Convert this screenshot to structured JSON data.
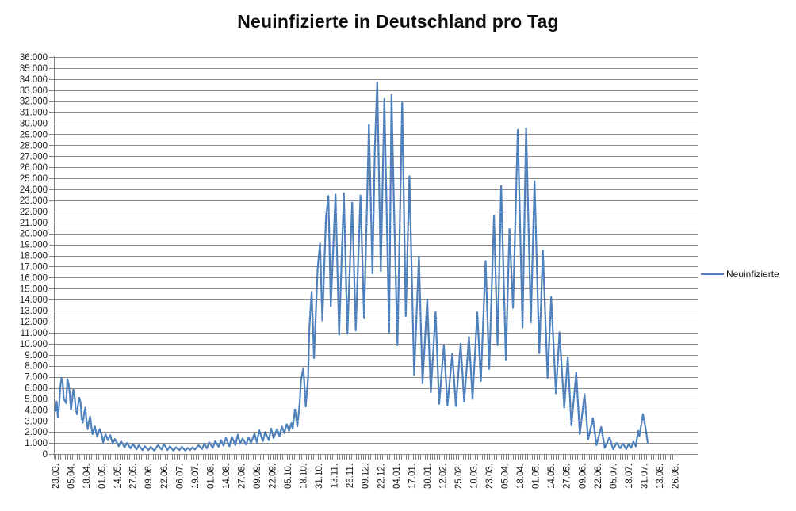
{
  "title": "Neuinfizierte in Deutschland pro Tag",
  "colors": {
    "series": "#4F81BD",
    "grid": "#8C8C8C",
    "axis": "#7F7F7F",
    "text": "#1a1a1a"
  },
  "legend": {
    "position": "right",
    "entries": [
      "Neuinfizierte"
    ]
  },
  "chart_data": {
    "type": "line",
    "title": "Neuinfizierte in Deutschland pro Tag",
    "xlabel": "",
    "ylabel": "",
    "grid": true,
    "y_axis": {
      "min": 0,
      "max": 36000,
      "step": 1000,
      "tick_labels": [
        "36.000",
        "35.000",
        "34.000",
        "33.000",
        "32.000",
        "31.000",
        "30.000",
        "29.000",
        "28.000",
        "27.000",
        "26.000",
        "25.000",
        "24.000",
        "23.000",
        "22.000",
        "21.000",
        "20.000",
        "19.000",
        "18.000",
        "17.000",
        "16.000",
        "15.000",
        "14.000",
        "13.000",
        "12.000",
        "11.000",
        "10.000",
        "9.000",
        "8.000",
        "7.000",
        "6.000",
        "5.000",
        "4.000",
        "3.000",
        "2.000",
        "1.000",
        "0"
      ]
    },
    "x_axis": {
      "first_category": "23.03.",
      "tick_interval_days": 13,
      "total_categories": 522,
      "tick_labels": [
        "23.03.",
        "05.04.",
        "18.04.",
        "01.05.",
        "14.05.",
        "27.05.",
        "09.06.",
        "22.06.",
        "06.07.",
        "19.07.",
        "01.08.",
        "14.08.",
        "27.08.",
        "09.09.",
        "22.09.",
        "05.10.",
        "18.10.",
        "31.10.",
        "13.11.",
        "26.11.",
        "09.12.",
        "22.12.",
        "04.01.",
        "17.01.",
        "30.01.",
        "12.02.",
        "25.02.",
        "10.03.",
        "23.03.",
        "05.04.",
        "18.04.",
        "01.05.",
        "14.05.",
        "27.05.",
        "09.06.",
        "22.06.",
        "05.07.",
        "18.07.",
        "31.07.",
        "13.08.",
        "26.08."
      ]
    },
    "series": [
      {
        "name": "Neuinfizierte",
        "color": "#4F81BD",
        "points_format": "[day_index_from_23.03., value]",
        "points": [
          [
            0,
            3900
          ],
          [
            1,
            4750
          ],
          [
            2,
            3300
          ],
          [
            3,
            4350
          ],
          [
            4,
            6000
          ],
          [
            5,
            6900
          ],
          [
            6,
            6550
          ],
          [
            7,
            5000
          ],
          [
            9,
            4600
          ],
          [
            10,
            6800
          ],
          [
            11,
            6350
          ],
          [
            12,
            5500
          ],
          [
            13,
            4000
          ],
          [
            14,
            4900
          ],
          [
            15,
            5850
          ],
          [
            16,
            5300
          ],
          [
            17,
            4100
          ],
          [
            18,
            3600
          ],
          [
            19,
            4500
          ],
          [
            20,
            5100
          ],
          [
            21,
            4700
          ],
          [
            22,
            3200
          ],
          [
            23,
            2850
          ],
          [
            24,
            3700
          ],
          [
            25,
            4200
          ],
          [
            26,
            3000
          ],
          [
            27,
            2250
          ],
          [
            28,
            2900
          ],
          [
            29,
            3400
          ],
          [
            30,
            2600
          ],
          [
            31,
            1800
          ],
          [
            33,
            2500
          ],
          [
            35,
            1550
          ],
          [
            37,
            2250
          ],
          [
            39,
            1650
          ],
          [
            40,
            1050
          ],
          [
            42,
            1800
          ],
          [
            44,
            1250
          ],
          [
            46,
            1700
          ],
          [
            48,
            950
          ],
          [
            50,
            1350
          ],
          [
            53,
            700
          ],
          [
            55,
            1150
          ],
          [
            58,
            600
          ],
          [
            60,
            1000
          ],
          [
            63,
            500
          ],
          [
            65,
            900
          ],
          [
            68,
            400
          ],
          [
            70,
            800
          ],
          [
            73,
            350
          ],
          [
            75,
            700
          ],
          [
            78,
            350
          ],
          [
            80,
            650
          ],
          [
            83,
            300
          ],
          [
            86,
            800
          ],
          [
            89,
            400
          ],
          [
            91,
            900
          ],
          [
            94,
            350
          ],
          [
            96,
            700
          ],
          [
            99,
            300
          ],
          [
            101,
            600
          ],
          [
            104,
            350
          ],
          [
            106,
            650
          ],
          [
            109,
            300
          ],
          [
            111,
            550
          ],
          [
            113,
            350
          ],
          [
            115,
            600
          ],
          [
            117,
            400
          ],
          [
            120,
            800
          ],
          [
            123,
            450
          ],
          [
            125,
            950
          ],
          [
            127,
            500
          ],
          [
            129,
            1050
          ],
          [
            132,
            550
          ],
          [
            134,
            1150
          ],
          [
            137,
            650
          ],
          [
            139,
            1250
          ],
          [
            141,
            750
          ],
          [
            143,
            1450
          ],
          [
            146,
            700
          ],
          [
            148,
            1550
          ],
          [
            151,
            800
          ],
          [
            153,
            1750
          ],
          [
            155,
            950
          ],
          [
            157,
            1400
          ],
          [
            160,
            850
          ],
          [
            162,
            1500
          ],
          [
            164,
            1000
          ],
          [
            167,
            1850
          ],
          [
            169,
            1050
          ],
          [
            171,
            2150
          ],
          [
            174,
            1150
          ],
          [
            176,
            2000
          ],
          [
            179,
            1250
          ],
          [
            181,
            2300
          ],
          [
            183,
            1450
          ],
          [
            186,
            2250
          ],
          [
            188,
            1600
          ],
          [
            190,
            2500
          ],
          [
            192,
            1900
          ],
          [
            194,
            2700
          ],
          [
            196,
            2100
          ],
          [
            198,
            2800
          ],
          [
            199,
            2300
          ],
          [
            201,
            4050
          ],
          [
            203,
            2500
          ],
          [
            205,
            4700
          ],
          [
            206,
            6650
          ],
          [
            208,
            7800
          ],
          [
            210,
            4300
          ],
          [
            212,
            6900
          ],
          [
            213,
            11300
          ],
          [
            215,
            14700
          ],
          [
            217,
            8700
          ],
          [
            220,
            16800
          ],
          [
            222,
            19100
          ],
          [
            224,
            12100
          ],
          [
            227,
            21500
          ],
          [
            229,
            23400
          ],
          [
            231,
            13400
          ],
          [
            235,
            23550
          ],
          [
            238,
            10800
          ],
          [
            242,
            23650
          ],
          [
            245,
            10900
          ],
          [
            249,
            22800
          ],
          [
            252,
            11200
          ],
          [
            256,
            23450
          ],
          [
            259,
            12300
          ],
          [
            261,
            20800
          ],
          [
            263,
            29900
          ],
          [
            266,
            16400
          ],
          [
            268,
            27700
          ],
          [
            270,
            33700
          ],
          [
            273,
            16600
          ],
          [
            276,
            32200
          ],
          [
            280,
            11000
          ],
          [
            282,
            32550
          ],
          [
            284,
            22900
          ],
          [
            287,
            9850
          ],
          [
            291,
            31850
          ],
          [
            294,
            12500
          ],
          [
            297,
            25200
          ],
          [
            301,
            7150
          ],
          [
            305,
            17900
          ],
          [
            308,
            6400
          ],
          [
            312,
            14000
          ],
          [
            315,
            5600
          ],
          [
            319,
            12900
          ],
          [
            322,
            4550
          ],
          [
            326,
            9850
          ],
          [
            329,
            4400
          ],
          [
            333,
            9100
          ],
          [
            336,
            4350
          ],
          [
            340,
            10000
          ],
          [
            343,
            4750
          ],
          [
            347,
            10600
          ],
          [
            350,
            5000
          ],
          [
            354,
            12850
          ],
          [
            357,
            6600
          ],
          [
            361,
            17500
          ],
          [
            364,
            7700
          ],
          [
            368,
            21600
          ],
          [
            371,
            9850
          ],
          [
            374,
            24300
          ],
          [
            378,
            8500
          ],
          [
            381,
            20400
          ],
          [
            384,
            13250
          ],
          [
            388,
            29400
          ],
          [
            392,
            11450
          ],
          [
            395,
            29550
          ],
          [
            399,
            11900
          ],
          [
            402,
            24750
          ],
          [
            406,
            9150
          ],
          [
            409,
            18450
          ],
          [
            413,
            6900
          ],
          [
            416,
            14250
          ],
          [
            420,
            5500
          ],
          [
            423,
            11040
          ],
          [
            427,
            4200
          ],
          [
            430,
            8770
          ],
          [
            433,
            2600
          ],
          [
            437,
            7380
          ],
          [
            440,
            1800
          ],
          [
            444,
            5430
          ],
          [
            447,
            1300
          ],
          [
            451,
            3250
          ],
          [
            454,
            800
          ],
          [
            458,
            2450
          ],
          [
            461,
            550
          ],
          [
            465,
            1500
          ],
          [
            468,
            440
          ],
          [
            471,
            1000
          ],
          [
            474,
            500
          ],
          [
            476,
            950
          ],
          [
            479,
            440
          ],
          [
            481,
            900
          ],
          [
            483,
            550
          ],
          [
            485,
            1100
          ],
          [
            487,
            700
          ],
          [
            489,
            2100
          ],
          [
            490,
            1600
          ],
          [
            492,
            2900
          ],
          [
            493,
            3600
          ],
          [
            495,
            2500
          ],
          [
            497,
            1050
          ]
        ]
      }
    ]
  }
}
